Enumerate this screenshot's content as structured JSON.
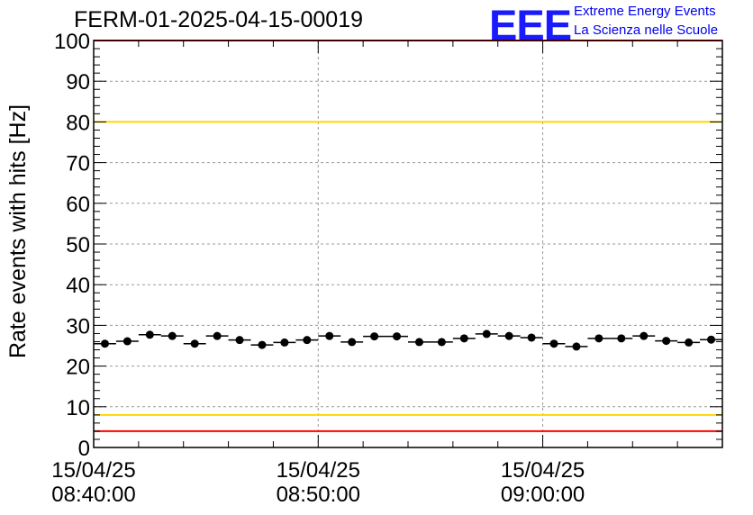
{
  "header": {
    "title": "FERM-01-2025-04-15-00019",
    "logo_text": "EEE",
    "logo_line1": "Extreme Energy Events",
    "logo_line2": "La Scienza nelle Scuole"
  },
  "colors": {
    "threshold_red": "#ff0000",
    "threshold_yellow": "#ffd700",
    "markers": "#000000",
    "grid": "#999999",
    "logo": "#1a1aff"
  },
  "chart_data": {
    "type": "scatter",
    "title": "FERM-01-2025-04-15-00019",
    "xlabel": "",
    "ylabel": "Rate events with hits [Hz]",
    "ylim": [
      0,
      100
    ],
    "xlim_minutes": [
      0,
      28
    ],
    "y_ticks": [
      0,
      10,
      20,
      30,
      40,
      50,
      60,
      70,
      80,
      90,
      100
    ],
    "x_ticks": [
      {
        "minute": 0,
        "date": "15/04/25",
        "time": "08:40:00"
      },
      {
        "minute": 10,
        "date": "15/04/25",
        "time": "08:50:00"
      },
      {
        "minute": 20,
        "date": "15/04/25",
        "time": "09:00:00"
      }
    ],
    "grid": true,
    "error_bar_minutes": 0.5,
    "thresholds": [
      {
        "value": 100,
        "color": "#ff0000"
      },
      {
        "value": 80,
        "color": "#ffd700"
      },
      {
        "value": 8,
        "color": "#ffd700"
      },
      {
        "value": 4,
        "color": "#ff0000"
      }
    ],
    "series": [
      {
        "x_minutes": [
          0.5,
          1.5,
          2.5,
          3.5,
          4.5,
          5.5,
          6.5,
          7.5,
          8.5,
          9.5,
          10.5,
          11.5,
          12.5,
          13.5,
          14.5,
          15.5,
          16.5,
          17.5,
          18.5,
          19.5,
          20.5,
          21.5,
          22.5,
          23.5,
          24.5,
          25.5,
          26.5,
          27.5
        ],
        "values": [
          25.5,
          26.1,
          27.7,
          27.4,
          25.5,
          27.4,
          26.4,
          25.2,
          25.8,
          26.4,
          27.4,
          25.9,
          27.3,
          27.3,
          25.9,
          25.9,
          26.8,
          27.9,
          27.4,
          27.0,
          25.5,
          24.8,
          26.8,
          26.8,
          27.4,
          26.2,
          25.8,
          26.5
        ]
      }
    ]
  }
}
